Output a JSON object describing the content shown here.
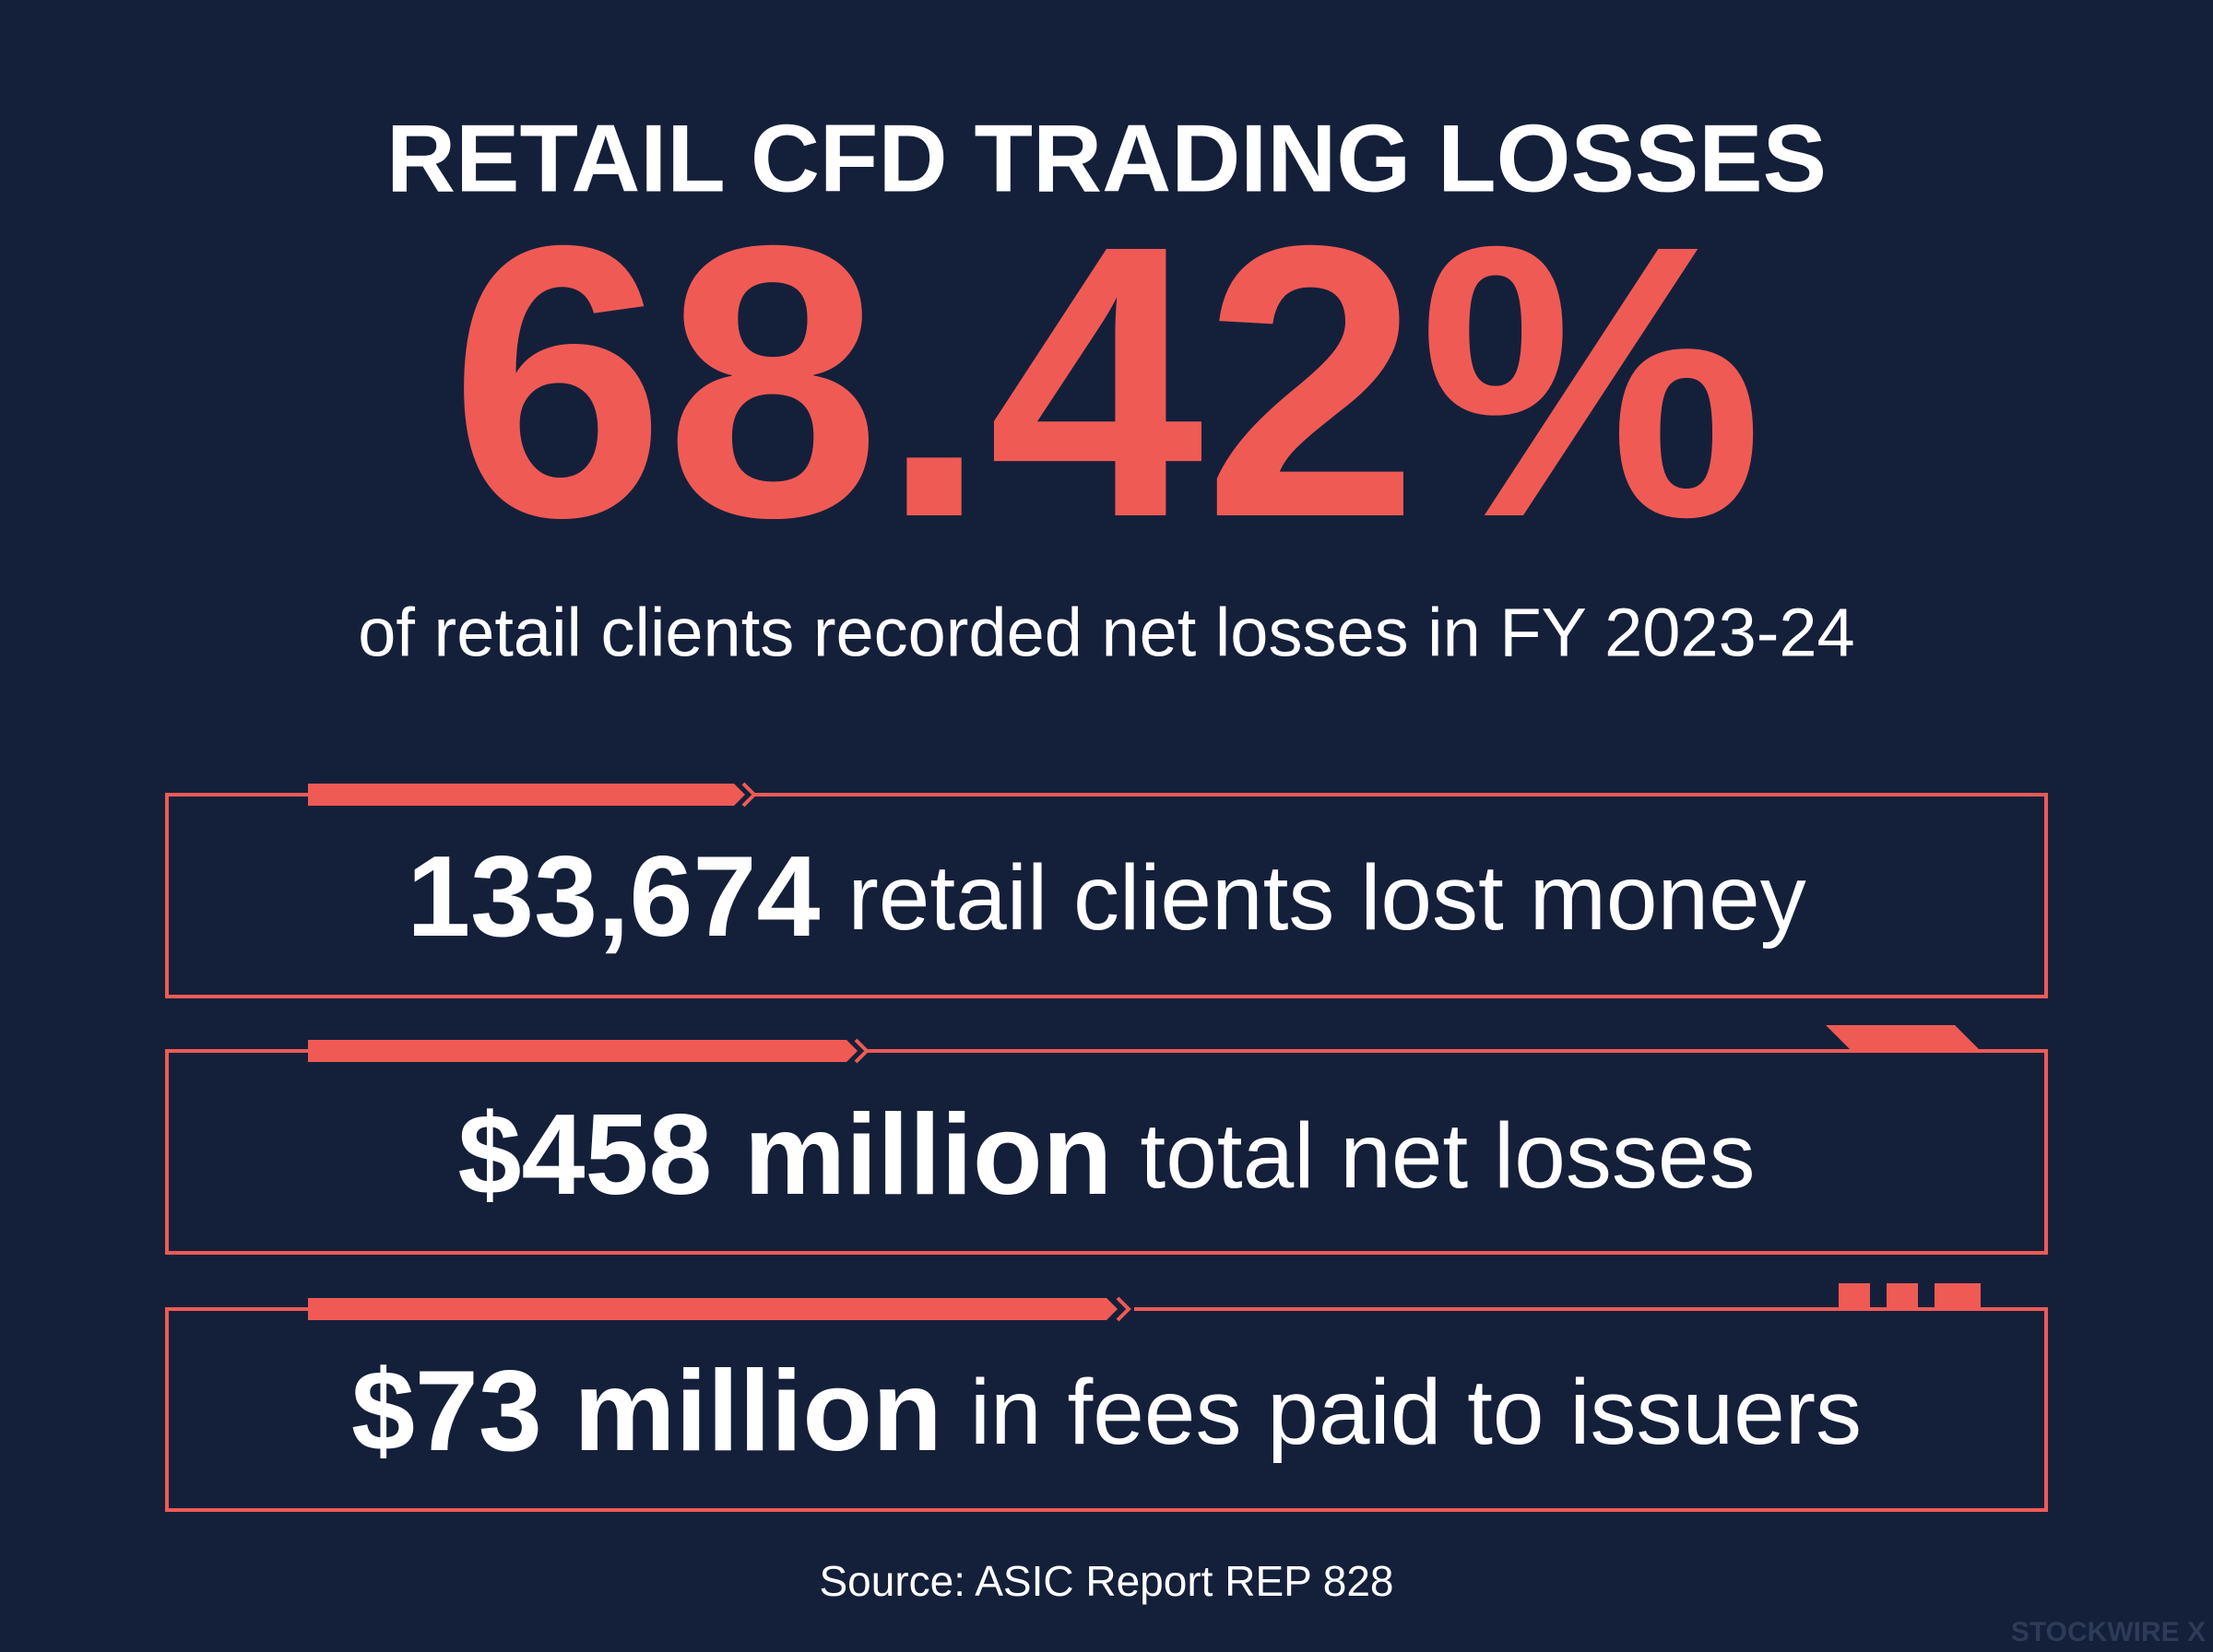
{
  "title": "RETAIL CFD TRADING LOSSES",
  "headline": "68.42%",
  "subtitle": "of retail clients recorded net losses in FY 2023-24",
  "stats": [
    {
      "value": "133,674",
      "label": "retail clients lost money"
    },
    {
      "value": "$458 million",
      "label": "total net losses"
    },
    {
      "value": "$73 million",
      "label": "in fees paid to issuers"
    }
  ],
  "source": "Source: ASIC Report REP 828",
  "watermark": "STOCKWIRE X"
}
